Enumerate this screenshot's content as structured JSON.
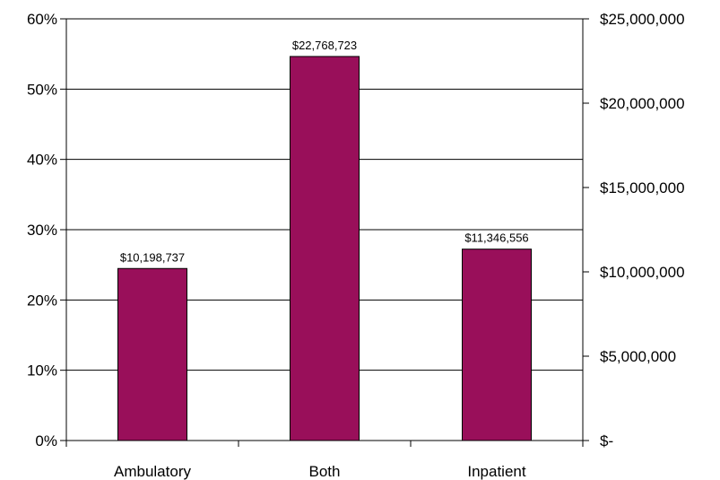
{
  "chart_data": {
    "type": "bar",
    "categories": [
      "Ambulatory",
      "Both",
      "Inpatient"
    ],
    "series": [
      {
        "values": [
          10198737,
          22768723,
          11346556
        ]
      }
    ],
    "data_labels": [
      "$10,198,737",
      "$22,768,723",
      "$11,346,556"
    ],
    "y_left": {
      "range": [
        0,
        60
      ],
      "ticks": [
        0,
        10,
        20,
        30,
        40,
        50,
        60
      ],
      "tick_labels": [
        "0%",
        "10%",
        "20%",
        "30%",
        "40%",
        "50%",
        "60%"
      ]
    },
    "y_right": {
      "range": [
        0,
        25000000
      ],
      "ticks": [
        0,
        5000000,
        10000000,
        15000000,
        20000000,
        25000000
      ],
      "tick_labels": [
        "$-",
        "$5,000,000",
        "$10,000,000",
        "$15,000,000",
        "$20,000,000",
        "$25,000,000"
      ]
    },
    "grid": true,
    "colors": {
      "bar": "#990F5A",
      "bar_stroke": "#000000",
      "grid": "#000000"
    }
  }
}
